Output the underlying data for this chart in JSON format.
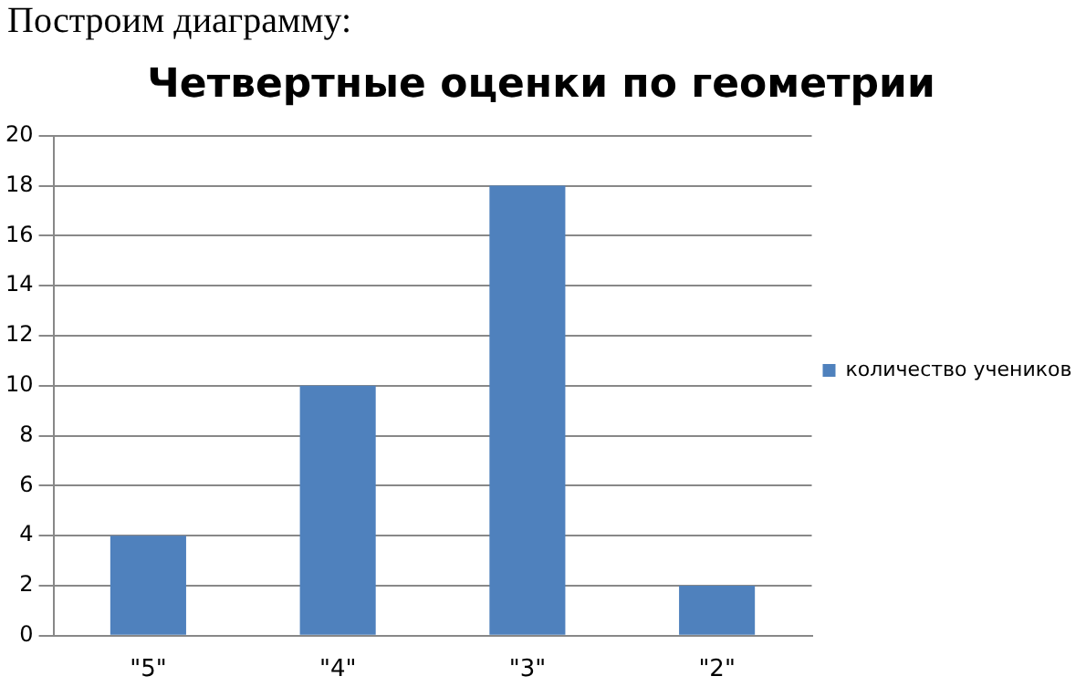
{
  "chart_data": {
    "type": "bar",
    "title": "Четвертные оценки по геометрии",
    "annotations": [
      "Построим диаграмму:"
    ],
    "categories": [
      "\"5\"",
      "\"4\"",
      "\"3\"",
      "\"2\""
    ],
    "series": [
      {
        "name": "количество учеников",
        "color": "#4f81bd",
        "values": [
          4,
          10,
          18,
          2
        ]
      }
    ],
    "ylim": [
      0,
      20
    ],
    "yticks": [
      0,
      2,
      4,
      6,
      8,
      10,
      12,
      14,
      16,
      18,
      20
    ],
    "grid": "y",
    "legend": "right"
  }
}
